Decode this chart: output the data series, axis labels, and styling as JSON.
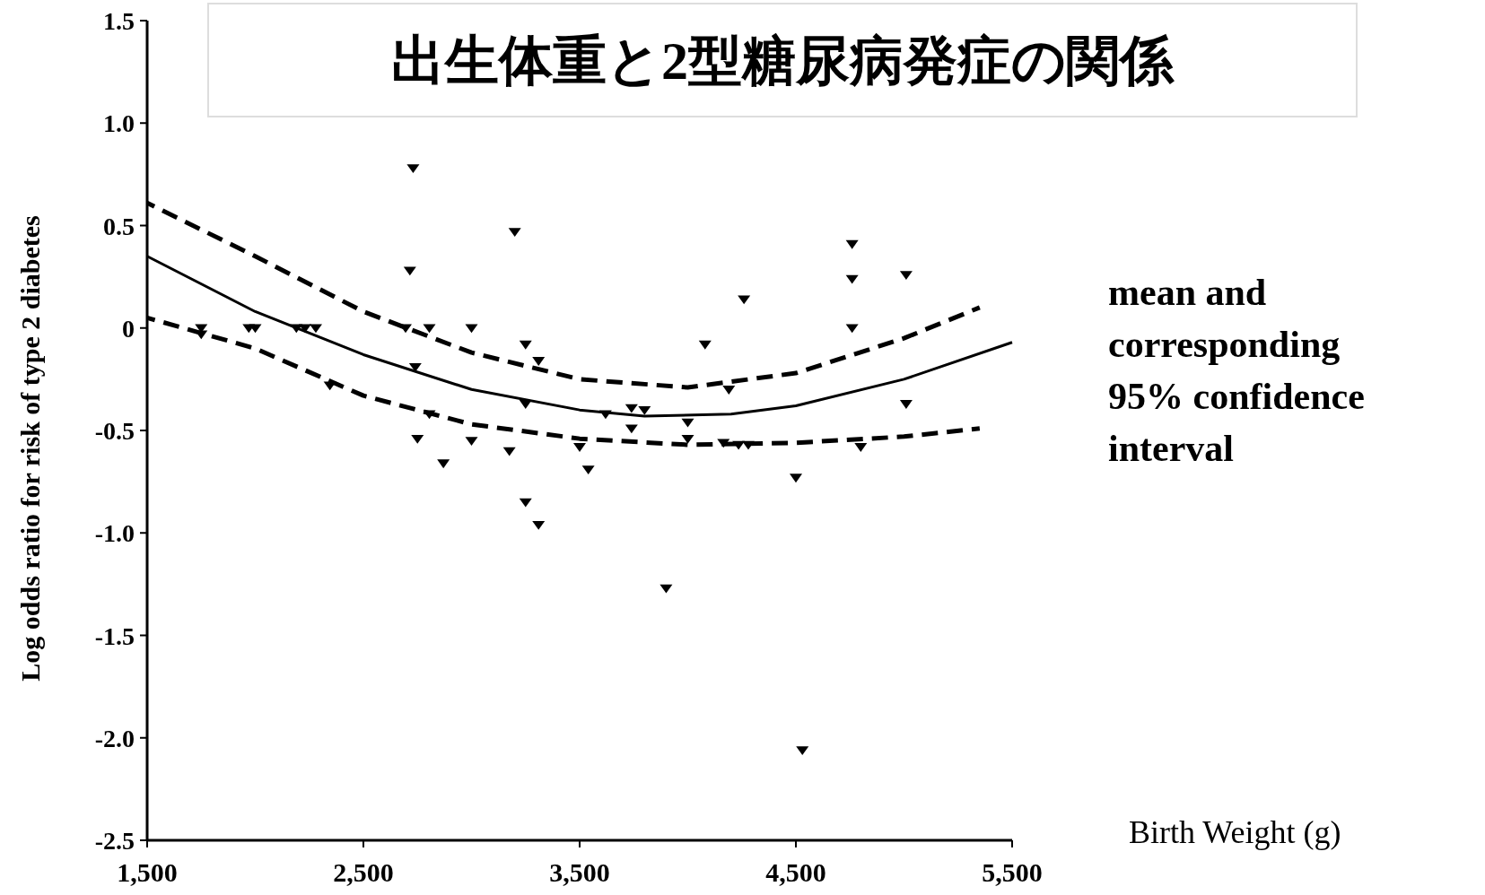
{
  "chart_data": {
    "type": "scatter",
    "title": "出生体重と2型糖尿病発症の関係",
    "xlabel": "Birth Weight (g)",
    "ylabel": "Log odds ratio for risk of type 2 diabetes",
    "annotations": [
      "mean and corresponding 95% confidence interval"
    ],
    "xlim": [
      1500,
      5500
    ],
    "ylim": [
      -2.5,
      1.5
    ],
    "xticks": [
      {
        "value": 1500,
        "label": "1,500"
      },
      {
        "value": 2500,
        "label": "2,500"
      },
      {
        "value": 3500,
        "label": "3,500"
      },
      {
        "value": 4500,
        "label": "4,500"
      },
      {
        "value": 5500,
        "label": "5,500"
      }
    ],
    "yticks": [
      {
        "value": 1.5,
        "label": "1.5"
      },
      {
        "value": 1,
        "label": "1.0"
      },
      {
        "value": 0.5,
        "label": "0.5"
      },
      {
        "value": 0,
        "label": "0"
      },
      {
        "value": -0.5,
        "label": "-0.5"
      },
      {
        "value": -1,
        "label": "-1.0"
      },
      {
        "value": -1.5,
        "label": "-1.5"
      },
      {
        "value": -2,
        "label": "-2.0"
      },
      {
        "value": -2.5,
        "label": "-2.5"
      }
    ],
    "series": [
      {
        "marker": "triangle",
        "color": "#000000",
        "x": [
          1750,
          1750,
          1970,
          2000,
          2190,
          2230,
          2280,
          2345,
          2730,
          2715,
          2695,
          2805,
          3000,
          2740,
          2805,
          2750,
          2870,
          3000,
          3200,
          3175,
          3250,
          3310,
          3250,
          3250,
          3310,
          3500,
          3540,
          3620,
          3740,
          3800,
          3740,
          3900,
          4000,
          4000,
          4080,
          4190,
          4260,
          4165,
          4235,
          4280,
          4500,
          4530,
          4760,
          4760,
          4760,
          5010,
          5010,
          4800
        ],
        "values": [
          0,
          -0.03,
          0,
          0,
          0,
          0,
          0,
          -0.28,
          0.78,
          0.28,
          0,
          0,
          0,
          -0.19,
          -0.42,
          -0.54,
          -0.66,
          -0.55,
          0.47,
          -0.6,
          -0.08,
          -0.16,
          -0.37,
          -0.85,
          -0.96,
          -0.58,
          -0.69,
          -0.42,
          -0.39,
          -0.4,
          -0.49,
          -1.27,
          -0.46,
          -0.54,
          -0.08,
          -0.3,
          0.14,
          -0.56,
          -0.57,
          -0.57,
          -0.73,
          -2.06,
          0.41,
          0.24,
          0,
          0.26,
          -0.37,
          -0.58
        ]
      },
      {
        "type": "line",
        "line_style": "solid",
        "color": "#000000",
        "x": [
          1500,
          2000,
          2500,
          3000,
          3500,
          3800,
          4200,
          4500,
          5000,
          5500
        ],
        "values": [
          0.35,
          0.08,
          -0.13,
          -0.3,
          -0.4,
          -0.43,
          -0.42,
          -0.38,
          -0.25,
          -0.07
        ]
      },
      {
        "type": "line",
        "line_style": "dashed",
        "color": "#000000",
        "x": [
          1500,
          2000,
          2500,
          3000,
          3500,
          4000,
          4500,
          5000,
          5350
        ],
        "values": [
          0.61,
          0.35,
          0.08,
          -0.12,
          -0.25,
          -0.29,
          -0.22,
          -0.05,
          0.1
        ]
      },
      {
        "type": "line",
        "line_style": "dashed",
        "color": "#000000",
        "x": [
          1500,
          2000,
          2500,
          3000,
          3500,
          4000,
          4500,
          5000,
          5350
        ],
        "values": [
          0.05,
          -0.1,
          -0.33,
          -0.47,
          -0.54,
          -0.57,
          -0.56,
          -0.53,
          -0.49
        ]
      }
    ]
  }
}
